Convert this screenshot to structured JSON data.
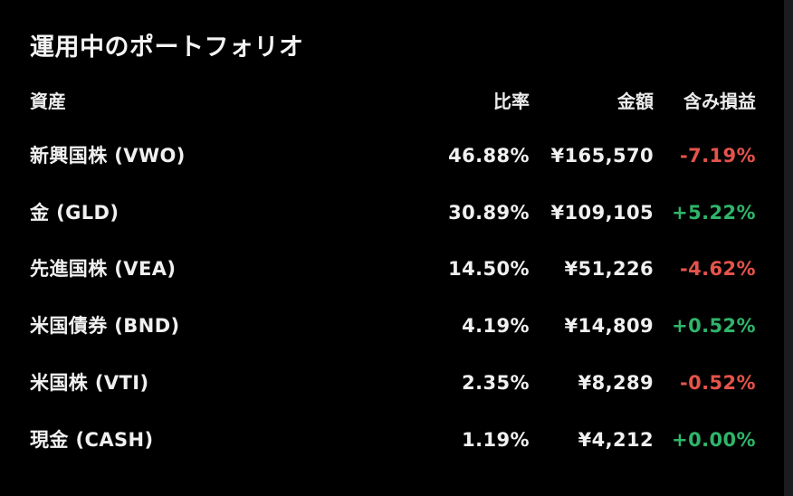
{
  "title": "運用中のポートフォリオ",
  "columns": {
    "asset": "資産",
    "ratio": "比率",
    "amount": "金額",
    "pl": "含み損益"
  },
  "rows": [
    {
      "asset": "新興国株 (VWO)",
      "ratio": "46.88%",
      "amount": "¥165,570",
      "pl": "-7.19%",
      "sign": "neg"
    },
    {
      "asset": "金 (GLD)",
      "ratio": "30.89%",
      "amount": "¥109,105",
      "pl": "+5.22%",
      "sign": "pos"
    },
    {
      "asset": "先進国株 (VEA)",
      "ratio": "14.50%",
      "amount": "¥51,226",
      "pl": "-4.62%",
      "sign": "neg"
    },
    {
      "asset": "米国債券 (BND)",
      "ratio": "4.19%",
      "amount": "¥14,809",
      "pl": "+0.52%",
      "sign": "pos"
    },
    {
      "asset": "米国株 (VTI)",
      "ratio": "2.35%",
      "amount": "¥8,289",
      "pl": "-0.52%",
      "sign": "neg"
    },
    {
      "asset": "現金 (CASH)",
      "ratio": "1.19%",
      "amount": "¥4,212",
      "pl": "+0.00%",
      "sign": "pos"
    }
  ],
  "colors": {
    "background": "#000000",
    "text": "#f0f0f0",
    "loss": "#e5534b",
    "gain": "#2fb56a"
  }
}
